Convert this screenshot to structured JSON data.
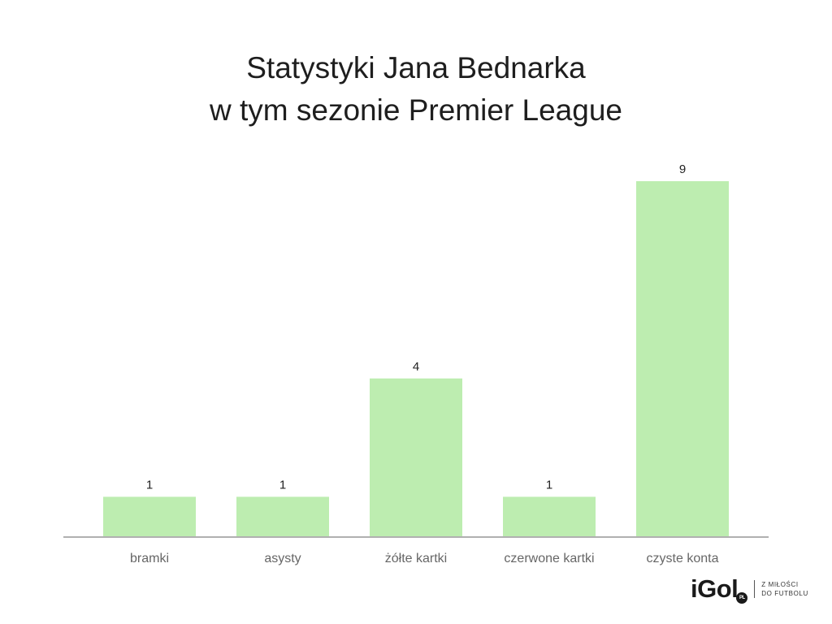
{
  "title_lines": [
    "Statystyki Jana Bednarka",
    "w tym sezonie Premier League"
  ],
  "chart_data": {
    "type": "bar",
    "categories": [
      "bramki",
      "asysty",
      "żółte kartki",
      "czerwone kartki",
      "czyste konta"
    ],
    "values": [
      1,
      1,
      4,
      1,
      9
    ],
    "data_labels": [
      "1",
      "1",
      "4",
      "1",
      "9"
    ],
    "title": "Statystyki Jana Bednarka w tym sezonie Premier League",
    "xlabel": "",
    "ylabel": "",
    "ylim": [
      0,
      9
    ],
    "grid": false,
    "legend": "none",
    "bar_color": "#bdedb0",
    "axis_color": "#b0b0b0"
  },
  "logo": {
    "mark": "iGol",
    "badge": "PL",
    "tagline_lines": [
      "Z MIŁOŚCI",
      "DO FUTBOLU"
    ]
  }
}
